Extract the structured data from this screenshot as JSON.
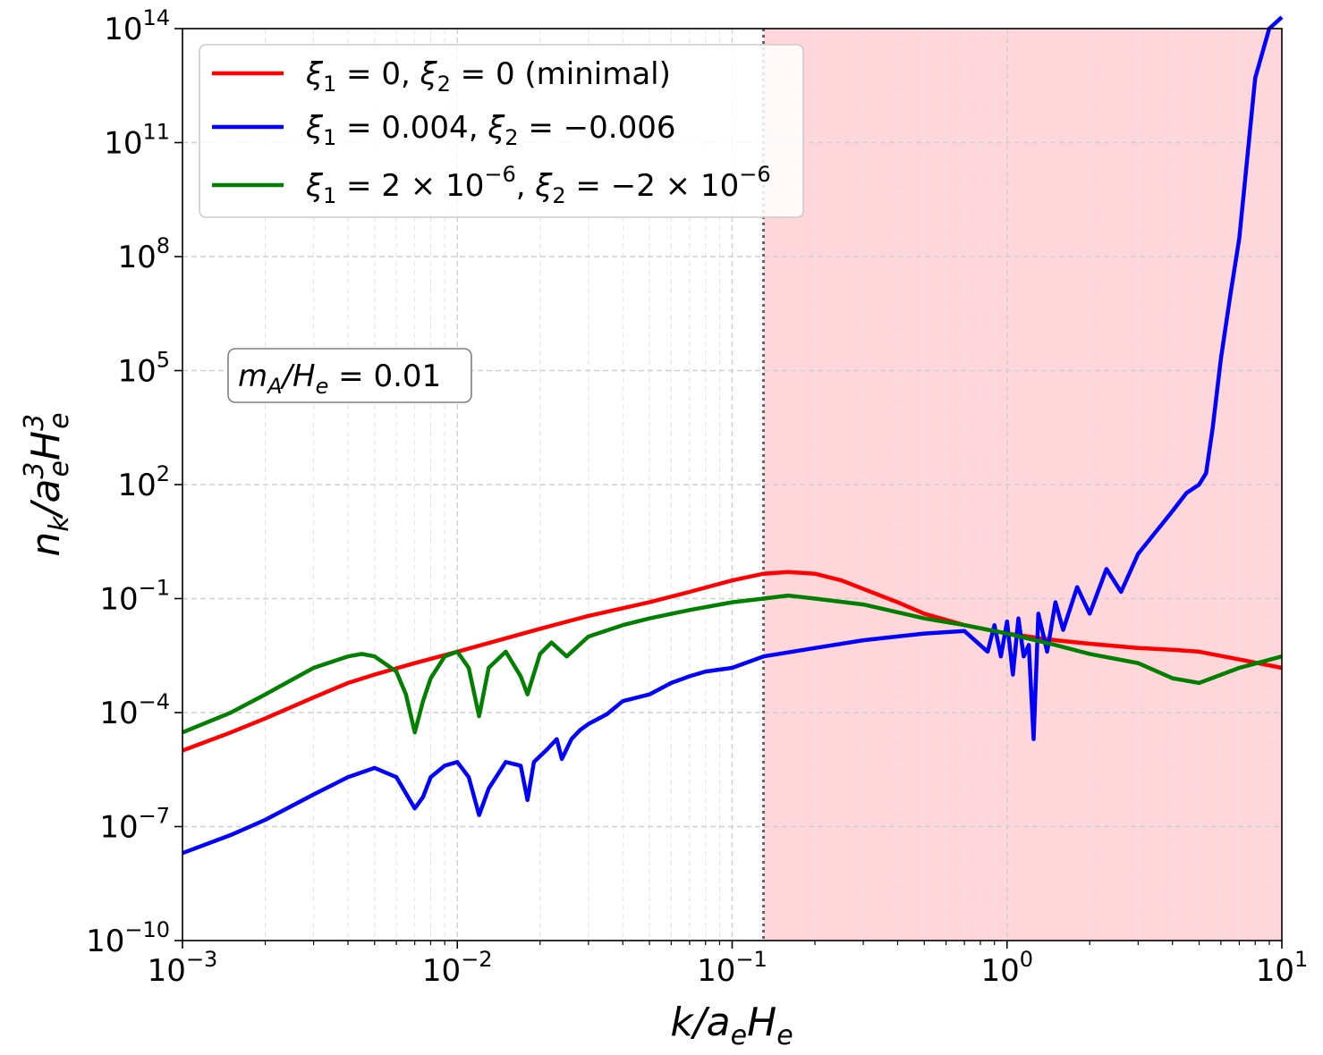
{
  "chart_data": {
    "type": "line",
    "xscale": "log",
    "yscale": "log",
    "xlim": [
      0.001,
      10
    ],
    "ylim": [
      1e-10,
      100000000000000.0
    ],
    "xlabel": "k/a_e H_e",
    "ylabel": "n_k/a_e^3 H_e^3",
    "xlabel_parts": {
      "k": "k/",
      "a": "a",
      "a_sub": "e",
      "h": "H",
      "h_sub": "e"
    },
    "ylabel_parts": {
      "n": "n",
      "n_sub": "k",
      "slash": "/",
      "a": "a",
      "a_sup": "3",
      "a_sub": "e",
      "h": "H",
      "h_sup": "3",
      "h_sub": "e"
    },
    "x_ticks": [
      {
        "value": 0.001,
        "base": "10",
        "exp": "−3"
      },
      {
        "value": 0.01,
        "base": "10",
        "exp": "−2"
      },
      {
        "value": 0.1,
        "base": "10",
        "exp": "−1"
      },
      {
        "value": 1,
        "base": "10",
        "exp": "0"
      },
      {
        "value": 10,
        "base": "10",
        "exp": "1"
      }
    ],
    "y_ticks": [
      {
        "value": 1e-10,
        "base": "10",
        "exp": "−10"
      },
      {
        "value": 1e-07,
        "base": "10",
        "exp": "−7"
      },
      {
        "value": 0.0001,
        "base": "10",
        "exp": "−4"
      },
      {
        "value": 0.1,
        "base": "10",
        "exp": "−1"
      },
      {
        "value": 100,
        "base": "10",
        "exp": "2"
      },
      {
        "value": 100000.0,
        "base": "10",
        "exp": "5"
      },
      {
        "value": 100000000.0,
        "base": "10",
        "exp": "8"
      },
      {
        "value": 100000000000.0,
        "base": "10",
        "exp": "11"
      },
      {
        "value": 100000000000000.0,
        "base": "10",
        "exp": "14"
      }
    ],
    "grid": true,
    "shaded_region": {
      "x_start": 0.13,
      "x_end": 10,
      "color": "#ffd6d9"
    },
    "vertical_line": {
      "x": 0.13,
      "style": "dotted",
      "color": "#666666"
    },
    "annotation": {
      "main": "m",
      "sub": "A",
      "rest": "/",
      "h": "H",
      "h_sub": "e",
      "value": " = 0.01"
    },
    "legend_position": "top-left",
    "series": [
      {
        "name": "ξ1 = 0, ξ2 = 0 (minimal)",
        "label_parts": [
          "ξ",
          "1",
          " = 0, ",
          "ξ",
          "2",
          " = 0 (minimal)"
        ],
        "color": "#ff0000",
        "x": [
          0.001,
          0.0015,
          0.002,
          0.003,
          0.004,
          0.005,
          0.007,
          0.01,
          0.015,
          0.02,
          0.03,
          0.05,
          0.07,
          0.1,
          0.13,
          0.16,
          0.2,
          0.25,
          0.3,
          0.4,
          0.5,
          0.7,
          1,
          1.5,
          2,
          3,
          4,
          5,
          7,
          10
        ],
        "y": [
          1e-05,
          3e-05,
          7e-05,
          0.00025,
          0.0006,
          0.001,
          0.002,
          0.004,
          0.009,
          0.016,
          0.035,
          0.08,
          0.15,
          0.3,
          0.45,
          0.5,
          0.45,
          0.3,
          0.18,
          0.08,
          0.04,
          0.02,
          0.012,
          0.008,
          0.0065,
          0.005,
          0.0045,
          0.004,
          0.0025,
          0.0015
        ]
      },
      {
        "name": "ξ1 = 0.004, ξ2 = −0.006",
        "label_parts": [
          "ξ",
          "1",
          " = 0.004, ",
          "ξ",
          "2",
          " = −0.006"
        ],
        "color": "#0000ff",
        "x": [
          0.001,
          0.0015,
          0.002,
          0.003,
          0.004,
          0.005,
          0.006,
          0.007,
          0.0075,
          0.008,
          0.009,
          0.01,
          0.011,
          0.012,
          0.013,
          0.015,
          0.017,
          0.018,
          0.019,
          0.021,
          0.023,
          0.024,
          0.026,
          0.028,
          0.03,
          0.035,
          0.04,
          0.05,
          0.06,
          0.07,
          0.08,
          0.1,
          0.13,
          0.2,
          0.3,
          0.5,
          0.7,
          0.85,
          0.9,
          0.95,
          1.0,
          1.05,
          1.1,
          1.15,
          1.2,
          1.25,
          1.3,
          1.4,
          1.5,
          1.6,
          1.8,
          2.0,
          2.3,
          2.6,
          3.0,
          3.5,
          4.0,
          4.5,
          5.0,
          5.3,
          5.6,
          6.0,
          6.5,
          7.0,
          8.0,
          9.0,
          10.0
        ],
        "y": [
          2e-08,
          6e-08,
          1.5e-07,
          7e-07,
          2e-06,
          3.5e-06,
          2e-06,
          3e-07,
          6e-07,
          2e-06,
          4e-06,
          5e-06,
          2e-06,
          2e-07,
          1e-06,
          5e-06,
          4e-06,
          5e-07,
          5e-06,
          1e-05,
          2e-05,
          6e-06,
          2e-05,
          3.5e-05,
          5e-05,
          9e-05,
          0.0002,
          0.0003,
          0.0006,
          0.0009,
          0.0012,
          0.0015,
          0.003,
          0.005,
          0.008,
          0.012,
          0.014,
          0.004,
          0.02,
          0.003,
          0.025,
          0.001,
          0.03,
          0.003,
          0.006,
          2e-05,
          0.04,
          0.004,
          0.08,
          0.015,
          0.2,
          0.04,
          0.6,
          0.15,
          1.5,
          6,
          20,
          60,
          100,
          200,
          3000,
          200000,
          10000000,
          300000000,
          5000000000000,
          100000000000000,
          200000000000000
        ]
      },
      {
        "name": "ξ1 = 2 × 10−6, ξ2 = −2 × 10−6",
        "label_parts": [
          "ξ",
          "1",
          " = 2 × 10",
          "−6",
          ", ",
          "ξ",
          "2",
          " = −2 × 10",
          "−6"
        ],
        "color": "#007f00",
        "x": [
          0.001,
          0.0015,
          0.002,
          0.003,
          0.004,
          0.0045,
          0.005,
          0.006,
          0.0065,
          0.007,
          0.0075,
          0.008,
          0.009,
          0.01,
          0.011,
          0.012,
          0.013,
          0.015,
          0.017,
          0.018,
          0.02,
          0.022,
          0.025,
          0.03,
          0.04,
          0.05,
          0.07,
          0.1,
          0.13,
          0.16,
          0.2,
          0.3,
          0.5,
          0.7,
          1,
          1.5,
          2,
          3,
          4,
          5,
          7,
          10
        ],
        "y": [
          3e-05,
          0.0001,
          0.0003,
          0.0015,
          0.003,
          0.0035,
          0.003,
          0.0012,
          0.0003,
          3e-05,
          0.0002,
          0.0008,
          0.003,
          0.004,
          0.0015,
          8e-05,
          0.0015,
          0.004,
          0.0009,
          0.0003,
          0.0035,
          0.007,
          0.003,
          0.01,
          0.02,
          0.03,
          0.05,
          0.08,
          0.1,
          0.12,
          0.1,
          0.07,
          0.03,
          0.02,
          0.012,
          0.006,
          0.0035,
          0.002,
          0.0008,
          0.0006,
          0.0015,
          0.003
        ]
      }
    ]
  }
}
